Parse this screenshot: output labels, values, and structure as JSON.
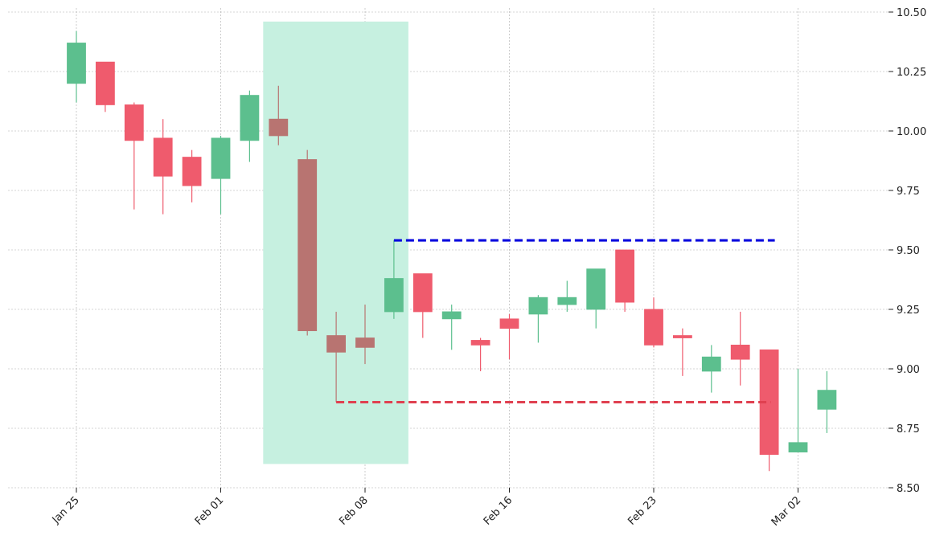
{
  "chart_data": {
    "type": "candlestick",
    "title": "",
    "xlabel": "",
    "ylabel": "",
    "ylim": [
      8.5,
      10.5
    ],
    "grid": true,
    "y_axis_side": "right",
    "colors": {
      "up": "#5cbf8e",
      "down": "#ef5b6d",
      "highlight_body": "#b87471",
      "highlight_zone": "#c6f0e0",
      "resistance_line": "#0000dd",
      "support_line": "#e04050",
      "grid": "#aaaaaa"
    },
    "x_tick_labels": [
      "Jan 25",
      "Feb 01",
      "Feb 08",
      "Feb 16",
      "Feb 23",
      "Mar 02"
    ],
    "y_tick_labels": [
      "8.50",
      "8.75",
      "9.00",
      "9.25",
      "9.50",
      "9.75",
      "10.00",
      "10.25",
      "10.50"
    ],
    "candles": [
      {
        "date": "Jan 25",
        "open": 10.2,
        "high": 10.42,
        "low": 10.12,
        "close": 10.37
      },
      {
        "date": "Jan 26",
        "open": 10.29,
        "high": 10.29,
        "low": 10.08,
        "close": 10.11
      },
      {
        "date": "Jan 27",
        "open": 10.11,
        "high": 10.12,
        "low": 9.67,
        "close": 9.96
      },
      {
        "date": "Jan 28",
        "open": 9.97,
        "high": 10.05,
        "low": 9.65,
        "close": 9.81
      },
      {
        "date": "Jan 29",
        "open": 9.89,
        "high": 9.92,
        "low": 9.7,
        "close": 9.77
      },
      {
        "date": "Feb 01",
        "open": 9.8,
        "high": 9.98,
        "low": 9.65,
        "close": 9.97
      },
      {
        "date": "Feb 02",
        "open": 9.96,
        "high": 10.17,
        "low": 9.87,
        "close": 10.15
      },
      {
        "date": "Feb 03",
        "open": 10.05,
        "high": 10.19,
        "low": 9.94,
        "close": 9.98,
        "highlight": true
      },
      {
        "date": "Feb 04",
        "open": 9.88,
        "high": 9.92,
        "low": 9.14,
        "close": 9.16,
        "highlight": true
      },
      {
        "date": "Feb 05",
        "open": 9.14,
        "high": 9.24,
        "low": 8.86,
        "close": 9.07,
        "highlight": true
      },
      {
        "date": "Feb 08",
        "open": 9.13,
        "high": 9.27,
        "low": 9.02,
        "close": 9.09,
        "highlight": true
      },
      {
        "date": "Feb 09",
        "open": 9.24,
        "high": 9.54,
        "low": 9.21,
        "close": 9.38
      },
      {
        "date": "Feb 10",
        "open": 9.4,
        "high": 9.4,
        "low": 9.13,
        "close": 9.24
      },
      {
        "date": "Feb 11",
        "open": 9.21,
        "high": 9.27,
        "low": 9.08,
        "close": 9.24
      },
      {
        "date": "Feb 12",
        "open": 9.12,
        "high": 9.13,
        "low": 8.99,
        "close": 9.1
      },
      {
        "date": "Feb 16",
        "open": 9.21,
        "high": 9.23,
        "low": 9.04,
        "close": 9.17
      },
      {
        "date": "Feb 17",
        "open": 9.23,
        "high": 9.31,
        "low": 9.11,
        "close": 9.3
      },
      {
        "date": "Feb 18",
        "open": 9.27,
        "high": 9.37,
        "low": 9.24,
        "close": 9.3
      },
      {
        "date": "Feb 19",
        "open": 9.25,
        "high": 9.42,
        "low": 9.17,
        "close": 9.42
      },
      {
        "date": "Feb 22",
        "open": 9.5,
        "high": 9.5,
        "low": 9.24,
        "close": 9.28
      },
      {
        "date": "Feb 23",
        "open": 9.25,
        "high": 9.3,
        "low": 9.09,
        "close": 9.1
      },
      {
        "date": "Feb 24",
        "open": 9.14,
        "high": 9.17,
        "low": 8.97,
        "close": 9.13
      },
      {
        "date": "Feb 25",
        "open": 8.99,
        "high": 9.1,
        "low": 8.9,
        "close": 9.05
      },
      {
        "date": "Feb 26",
        "open": 9.1,
        "high": 9.24,
        "low": 8.93,
        "close": 9.04
      },
      {
        "date": "Feb 26b",
        "open": 9.08,
        "high": 9.08,
        "low": 8.57,
        "close": 8.64
      },
      {
        "date": "Mar 02",
        "open": 8.65,
        "high": 9.0,
        "low": 8.65,
        "close": 8.69
      },
      {
        "date": "Mar 03",
        "open": 8.83,
        "high": 8.99,
        "low": 8.73,
        "close": 8.91
      }
    ],
    "highlight_zone": {
      "start_index": 7,
      "end_index": 11,
      "low": 8.6,
      "high": 10.46
    },
    "resistance_line": {
      "value": 9.54,
      "start_index": 11,
      "end_index": 24
    },
    "support_line": {
      "value": 8.86,
      "start_index": 9,
      "end_index": 24
    }
  }
}
